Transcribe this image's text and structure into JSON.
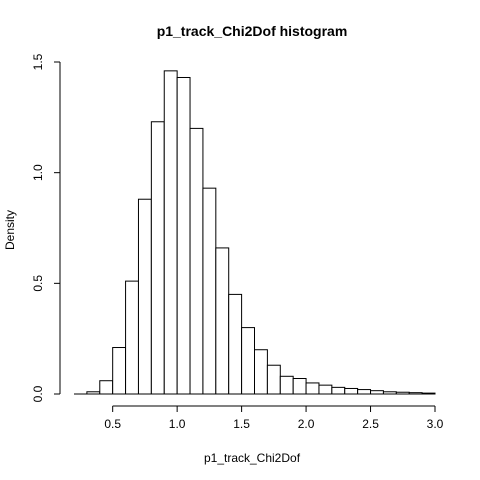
{
  "chart_data": {
    "type": "bar",
    "title": "p1_track_Chi2Dof  histogram",
    "xlabel": "p1_track_Chi2Dof",
    "ylabel": "Density",
    "bin_width": 0.1,
    "bin_starts": [
      0.3,
      0.4,
      0.5,
      0.6,
      0.7,
      0.8,
      0.9,
      1.0,
      1.1,
      1.2,
      1.3,
      1.4,
      1.5,
      1.6,
      1.7,
      1.8,
      1.9,
      2.0,
      2.1,
      2.2,
      2.3,
      2.4,
      2.5,
      2.6,
      2.7,
      2.8,
      2.9
    ],
    "values": [
      0.01,
      0.06,
      0.21,
      0.51,
      0.88,
      1.23,
      1.46,
      1.43,
      1.2,
      0.93,
      0.66,
      0.45,
      0.3,
      0.2,
      0.13,
      0.08,
      0.07,
      0.05,
      0.04,
      0.03,
      0.025,
      0.02,
      0.015,
      0.01,
      0.008,
      0.006,
      0.004
    ],
    "x_baseline_range": [
      0.2,
      3.0
    ],
    "xlim": [
      0.2,
      3.0
    ],
    "ylim": [
      0,
      1.5
    ],
    "x_ticks": [
      0.5,
      1.0,
      1.5,
      2.0,
      2.5,
      3.0
    ],
    "x_tick_labels": [
      "0.5",
      "1.0",
      "1.5",
      "2.0",
      "2.5",
      "3.0"
    ],
    "y_ticks": [
      0,
      0.5,
      1.0,
      1.5
    ],
    "y_tick_labels": [
      "0.0",
      "0.5",
      "1.0",
      "1.5"
    ],
    "grid": false,
    "colors": {
      "bar_fill": "#ffffff",
      "bar_stroke": "#000000"
    }
  }
}
